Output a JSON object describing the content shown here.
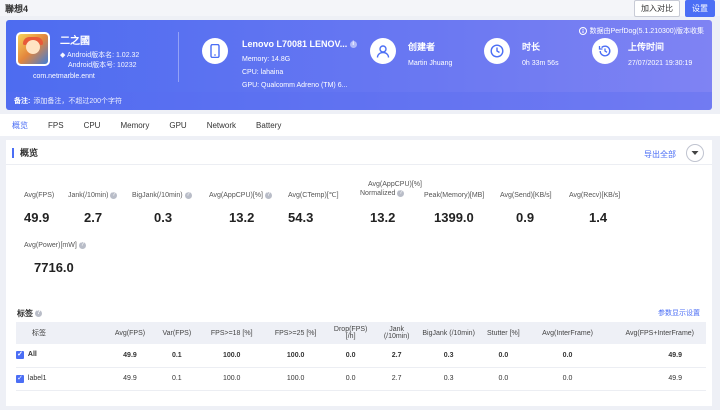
{
  "topbar": {
    "title": "聯想4",
    "compare_label": "加入对比",
    "settings_label": "设置"
  },
  "app": {
    "name": "二之國",
    "version_name": "Android版本名: 1.02.32",
    "version_code": "Android版本号: 10232",
    "package": "com.netmarble.ennt"
  },
  "device": {
    "title": "Lenovo L70081 LENOV...",
    "memory": "Memory: 14.8G",
    "cpu": "CPU: lahaina",
    "gpu": "GPU: Qualcomm Adreno (TM) 6..."
  },
  "creator": {
    "title": "创建者",
    "value": "Martin Jhuang"
  },
  "duration": {
    "title": "时长",
    "value": "0h 33m 56s"
  },
  "upload": {
    "title": "上传时间",
    "value": "27/07/2021 19:30:19"
  },
  "collect_note": "数据由PerfDog(5.1.210300)版本收集",
  "note": {
    "label": "备注:",
    "placeholder": "添加备注，不超过200个字符"
  },
  "tabs": [
    "概览",
    "FPS",
    "CPU",
    "Memory",
    "GPU",
    "Network",
    "Battery"
  ],
  "overview": {
    "title": "概览",
    "export_label": "导出全部"
  },
  "metrics": [
    {
      "label": "Avg(FPS)",
      "value": "49.9",
      "help": false
    },
    {
      "label": "Jank(/10min)",
      "value": "2.7",
      "help": true
    },
    {
      "label": "BigJank(/10min)",
      "value": "0.3",
      "help": true
    },
    {
      "label": "Avg(AppCPU)[%]",
      "value": "13.2",
      "help": true
    },
    {
      "label": "Avg(CTemp)[℃]",
      "value": "54.3",
      "help": false
    },
    {
      "label": "Avg(AppCPU)[%]",
      "label2": "Normalized",
      "value": "13.2",
      "help": true
    },
    {
      "label": "Peak(Memory)[MB]",
      "value": "1399.0",
      "help": false
    },
    {
      "label": "Avg(Send)[KB/s]",
      "value": "0.9",
      "help": false
    },
    {
      "label": "Avg(Recv)[KB/s]",
      "value": "1.4",
      "help": false
    },
    {
      "label": "Avg(Power)[mW]",
      "value": "7716.0",
      "help": true
    }
  ],
  "tags": {
    "title": "标签",
    "params_label": "参数显示设置"
  },
  "table": {
    "headers": [
      "标签",
      "Avg(FPS)",
      "Var(FPS)",
      "FPS>=18 [%]",
      "FPS>=25 [%]",
      "Drop(FPS) [/h]",
      "Jank (/10min)",
      "BigJank (/10min)",
      "Stutter [%]",
      "Avg(InterFrame)",
      "Avg(FPS+InterFrame)"
    ],
    "rows": [
      [
        "All",
        "49.9",
        "0.1",
        "100.0",
        "100.0",
        "0.0",
        "2.7",
        "0.3",
        "0.0",
        "0.0",
        "49.9"
      ],
      [
        "label1",
        "49.9",
        "0.1",
        "100.0",
        "100.0",
        "0.0",
        "2.7",
        "0.3",
        "0.0",
        "0.0",
        "49.9"
      ]
    ]
  }
}
